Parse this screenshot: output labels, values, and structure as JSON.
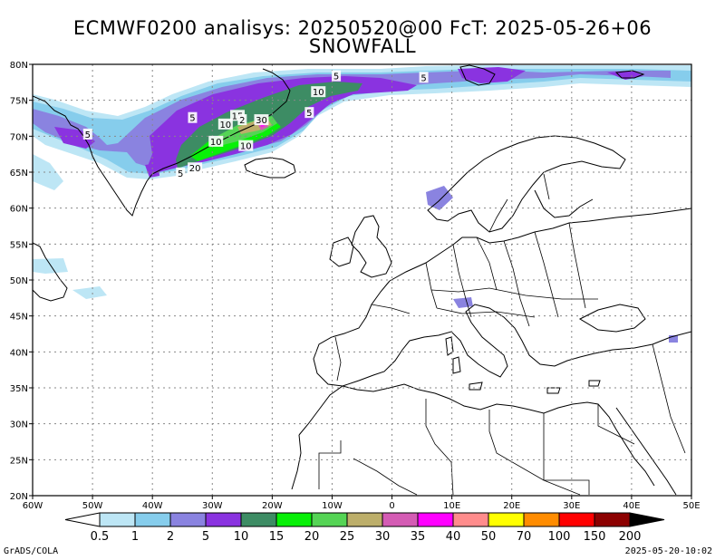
{
  "title": {
    "line1": "ECMWF0200 analisys: 20250520@00 FcT: 2025-05-26+06",
    "line2": "SNOWFALL"
  },
  "map": {
    "lon_range": [
      -60,
      50
    ],
    "lat_range": [
      20,
      80
    ],
    "lon_ticks": [
      -60,
      -50,
      -40,
      -30,
      -20,
      -10,
      0,
      10,
      20,
      30,
      40,
      50
    ],
    "lon_labels": [
      "60W",
      "50W",
      "40W",
      "30W",
      "20W",
      "10W",
      "0",
      "10E",
      "20E",
      "30E",
      "40E",
      "50E"
    ],
    "lat_ticks": [
      20,
      25,
      30,
      35,
      40,
      45,
      50,
      55,
      60,
      65,
      70,
      75,
      80
    ],
    "lat_labels": [
      "20N",
      "25N",
      "30N",
      "35N",
      "40N",
      "45N",
      "50N",
      "55N",
      "60N",
      "65N",
      "70N",
      "75N",
      "80N"
    ],
    "grid": true
  },
  "colorbar": {
    "labels": [
      "0.5",
      "1",
      "2",
      "5",
      "10",
      "15",
      "20",
      "25",
      "30",
      "35",
      "40",
      "50",
      "70",
      "100",
      "150",
      "200"
    ],
    "colors": [
      "#bde6f5",
      "#86cdec",
      "#8a83e0",
      "#8a33e0",
      "#3d8c64",
      "#08f008",
      "#55d455",
      "#bcae6a",
      "#d45cb4",
      "#ff00ff",
      "#ff8c8c",
      "#ffff00",
      "#ff8c00",
      "#ff0000",
      "#8c0000"
    ]
  },
  "contour_labels": [
    {
      "text": "5",
      "lon": -9.3,
      "lat": 78.4
    },
    {
      "text": "10",
      "lon": -12.3,
      "lat": 76.2
    },
    {
      "text": "5",
      "lon": -13.8,
      "lat": 73.3
    },
    {
      "text": "5",
      "lon": -33.3,
      "lat": 72.6
    },
    {
      "text": "15",
      "lon": -25.8,
      "lat": 72.9
    },
    {
      "text": "2",
      "lon": -25.0,
      "lat": 72.3
    },
    {
      "text": "30",
      "lon": -21.8,
      "lat": 72.3
    },
    {
      "text": "10",
      "lon": -27.8,
      "lat": 71.7
    },
    {
      "text": "10",
      "lon": -29.4,
      "lat": 69.3
    },
    {
      "text": "10",
      "lon": -24.4,
      "lat": 68.7
    },
    {
      "text": "5",
      "lon": -50.8,
      "lat": 70.3
    },
    {
      "text": "20",
      "lon": -32.9,
      "lat": 65.6
    },
    {
      "text": "5",
      "lon": -35.3,
      "lat": 64.9
    },
    {
      "text": "5",
      "lon": 5.3,
      "lat": 78.2
    }
  ],
  "footer": {
    "credit": "GrADS/COLA",
    "timestamp": "2025-05-20-10:02"
  }
}
